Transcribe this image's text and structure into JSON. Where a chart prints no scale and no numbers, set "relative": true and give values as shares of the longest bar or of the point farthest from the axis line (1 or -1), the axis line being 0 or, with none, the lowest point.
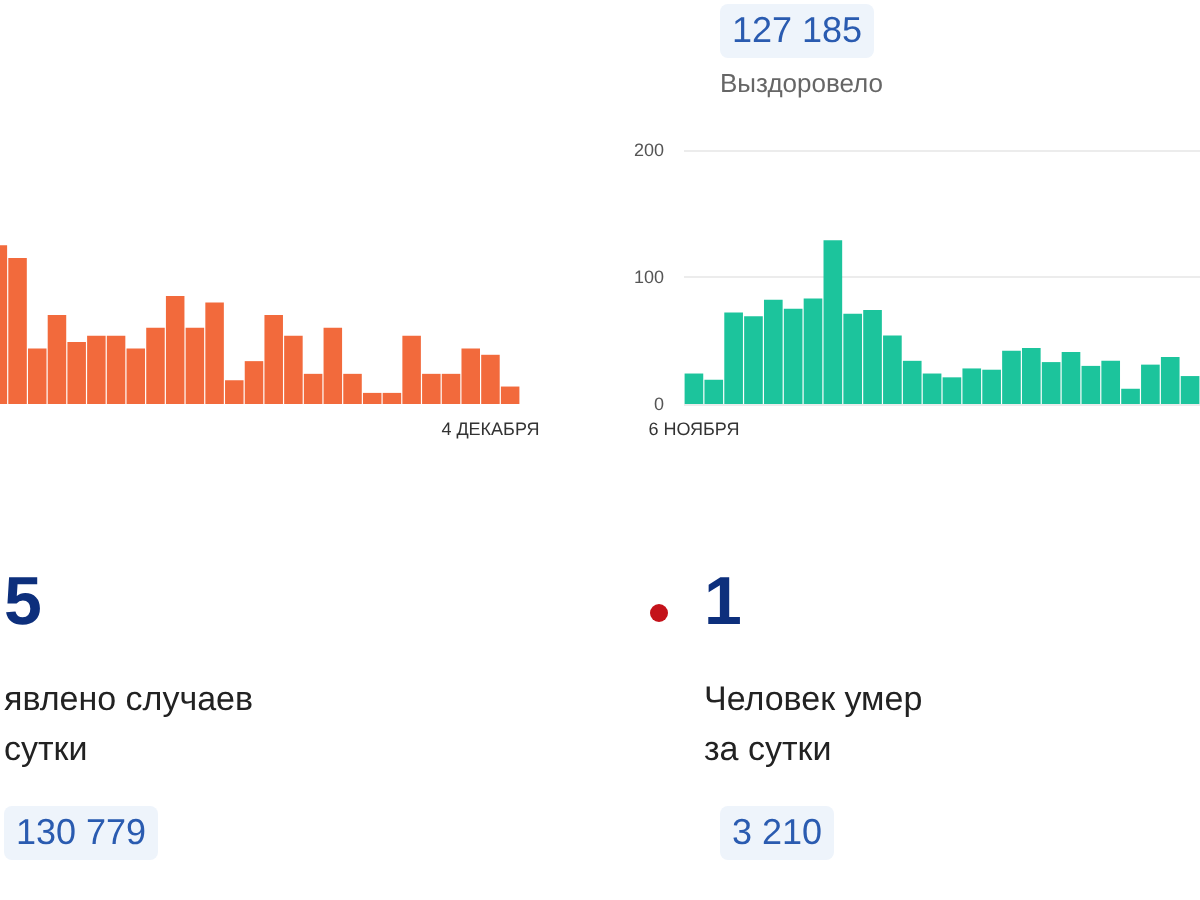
{
  "chart_data": [
    {
      "type": "other",
      "annotations": [
        "127 185",
        "Выздоровело"
      ]
    },
    {
      "type": "bar",
      "relative": true,
      "color": "#f26a3c",
      "categories": [
        null,
        null,
        null,
        null,
        null,
        null,
        null,
        null,
        null,
        null,
        null,
        null,
        null,
        null,
        null,
        null,
        null,
        null,
        null,
        null,
        null,
        null,
        null,
        null,
        null,
        "4 ДЕКАБРЯ",
        null
      ],
      "values": [
        1,
        0.92,
        0.35,
        0.56,
        0.39,
        0.43,
        0.43,
        0.35,
        0.48,
        0.68,
        0.48,
        0.64,
        0.15,
        0.27,
        0.56,
        0.43,
        0.19,
        0.48,
        0.19,
        0.07,
        0.07,
        0.43,
        0.19,
        0.19,
        0.35,
        0.31,
        0.11
      ]
    },
    {
      "type": "bar",
      "color": "#1cc49c",
      "ylim": [
        0,
        200
      ],
      "yticks": [
        0,
        100,
        200
      ],
      "grid": "y",
      "categories": [
        "6 НОЯБРЯ",
        null,
        null,
        null,
        null,
        null,
        null,
        null,
        null,
        null,
        null,
        null,
        null,
        null,
        null,
        null,
        null,
        null,
        null,
        null,
        null,
        null,
        null,
        null,
        null,
        null
      ],
      "values": [
        24,
        19,
        72,
        69,
        82,
        75,
        83,
        129,
        71,
        74,
        54,
        34,
        24,
        21,
        28,
        27,
        42,
        44,
        33,
        41,
        30,
        34,
        12,
        31,
        37,
        22
      ]
    },
    {
      "type": "other",
      "annotations": [
        "5",
        "явлено случаев",
        "сутки",
        "130 779"
      ]
    },
    {
      "type": "other",
      "annotations": [
        "1",
        "Человек умер",
        "за сутки",
        "3 210"
      ]
    }
  ]
}
